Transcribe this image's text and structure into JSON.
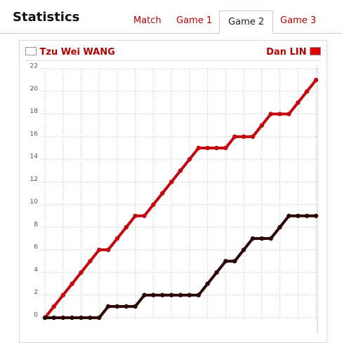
{
  "header": {
    "title": "Statistics",
    "tabs": [
      "Match",
      "Game 1",
      "Game 2",
      "Game 3"
    ]
  },
  "players": {
    "left": "Tzu Wei WANG",
    "right": "Dan LIN"
  },
  "chart_data": {
    "type": "line",
    "x": [
      0,
      1,
      2,
      3,
      4,
      5,
      6,
      7,
      8,
      9,
      10,
      11,
      12,
      13,
      14,
      15,
      16,
      17,
      18,
      19,
      20,
      21,
      22,
      23,
      24,
      25,
      26,
      27,
      28,
      29,
      30
    ],
    "xlim": [
      0,
      30
    ],
    "ylim": [
      0,
      22
    ],
    "yticks": [
      0,
      2,
      4,
      6,
      8,
      10,
      12,
      14,
      16,
      18,
      20,
      22
    ],
    "grid": true,
    "series": [
      {
        "name": "Dan LIN",
        "color": "#c2080e",
        "values": [
          0,
          1,
          2,
          3,
          4,
          5,
          6,
          6,
          7,
          8,
          9,
          9,
          10,
          11,
          12,
          13,
          14,
          15,
          15,
          15,
          15,
          16,
          16,
          16,
          17,
          18,
          18,
          18,
          19,
          20,
          21
        ]
      },
      {
        "name": "Tzu Wei WANG",
        "color": "#2b0606",
        "values": [
          0,
          0,
          0,
          0,
          0,
          0,
          0,
          1,
          1,
          1,
          1,
          2,
          2,
          2,
          2,
          2,
          2,
          2,
          3,
          4,
          5,
          5,
          6,
          7,
          7,
          7,
          8,
          9,
          9,
          9,
          9
        ]
      }
    ]
  }
}
